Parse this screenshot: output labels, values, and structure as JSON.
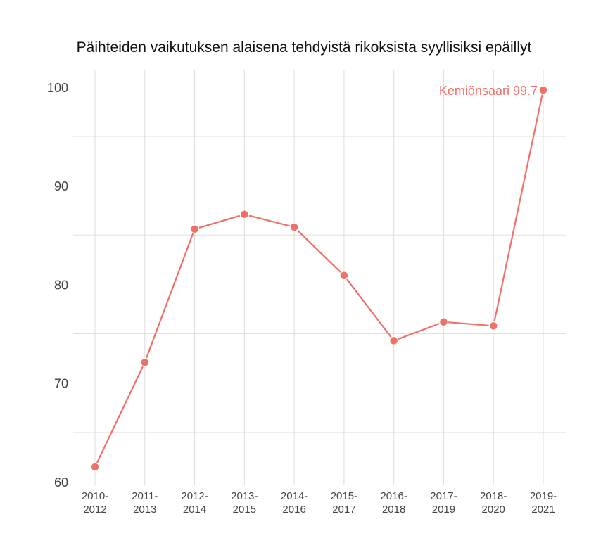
{
  "chart_data": {
    "type": "line",
    "title": "Päihteiden vaikutuksen alaisena tehdyistä rikoksista syyllisiksi epäillyt",
    "xlabel": "",
    "ylabel": "",
    "categories": [
      "2010-2012",
      "2011-2013",
      "2012-2014",
      "2013-2015",
      "2014-2016",
      "2015-2017",
      "2016-2018",
      "2017-2019",
      "2018-2020",
      "2019-2021"
    ],
    "category_lines": [
      [
        "2010-",
        "2012"
      ],
      [
        "2011-",
        "2013"
      ],
      [
        "2012-",
        "2014"
      ],
      [
        "2013-",
        "2015"
      ],
      [
        "2014-",
        "2016"
      ],
      [
        "2015-",
        "2017"
      ],
      [
        "2016-",
        "2018"
      ],
      [
        "2017-",
        "2019"
      ],
      [
        "2018-",
        "2020"
      ],
      [
        "2019-",
        "2021"
      ]
    ],
    "series": [
      {
        "name": "Kemiönsaari",
        "color": "#f07067",
        "values": [
          61.5,
          72.1,
          85.6,
          87.1,
          85.8,
          80.9,
          74.3,
          76.2,
          75.8,
          99.7
        ]
      }
    ],
    "yticks": [
      60,
      70,
      80,
      90,
      100
    ],
    "ylim": [
      60,
      100
    ],
    "grid": true,
    "annotation": {
      "text": "Kemiönsaari 99.7",
      "series": "Kemiönsaari",
      "index": 9
    }
  }
}
